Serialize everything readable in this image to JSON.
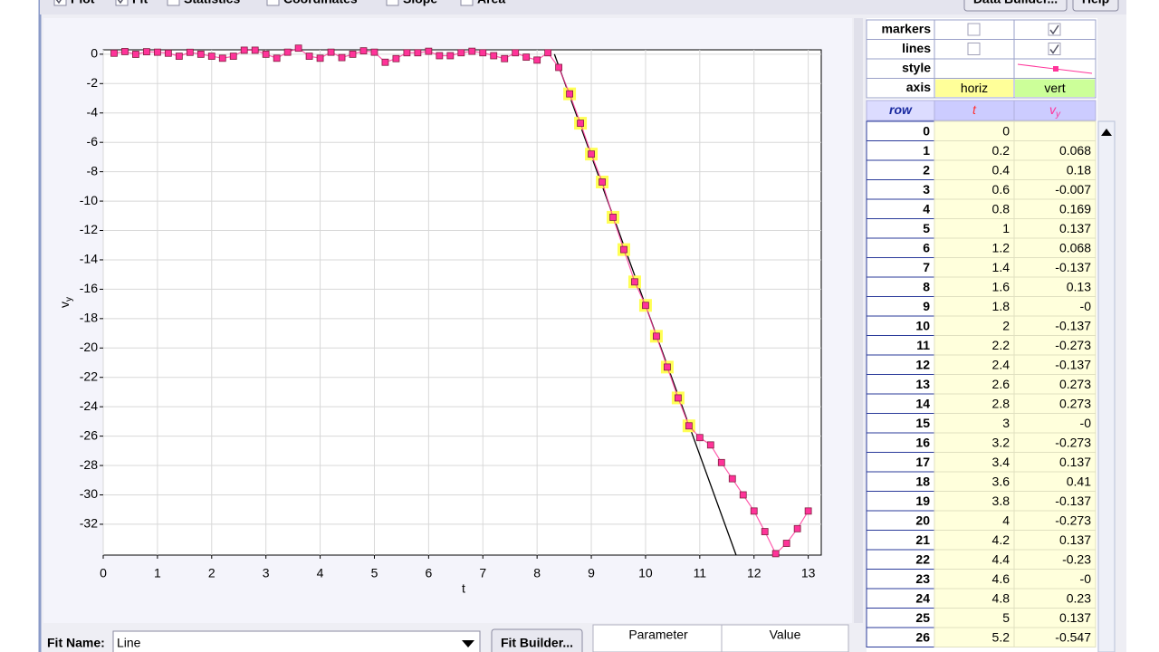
{
  "toolbar": {
    "items": [
      "Plot",
      "Fit",
      "Statistics",
      "Coordinates",
      "Slope",
      "Area"
    ],
    "checked": [
      true,
      true,
      false,
      false,
      false,
      false
    ],
    "buttons": [
      "Data Builder...",
      "Help"
    ]
  },
  "chart_data": {
    "type": "line",
    "xlabel": "t",
    "ylabel": "v",
    "ylabel_sub": "y",
    "x": [
      0,
      0.2,
      0.4,
      0.6,
      0.8,
      1,
      1.2,
      1.4,
      1.6,
      1.8,
      2,
      2.2,
      2.4,
      2.6,
      2.8,
      3,
      3.2,
      3.4,
      3.6,
      3.8,
      4,
      4.2,
      4.4,
      4.6,
      4.8,
      5,
      5.2,
      5.4,
      5.6,
      5.8,
      6,
      6.2,
      6.4,
      6.6,
      6.8,
      7,
      7.2,
      7.4,
      7.6,
      7.8,
      8,
      8.2,
      8.4,
      8.6,
      8.8,
      9,
      9.2,
      9.4,
      9.6,
      9.8,
      10,
      10.2,
      10.4,
      10.6,
      10.8,
      11,
      11.2,
      11.4,
      11.6,
      11.8,
      12,
      12.2,
      12.4,
      12.6,
      12.8,
      13
    ],
    "series": [
      {
        "color": "#ff3399",
        "values": [
          null,
          0.068,
          0.18,
          -0.007,
          0.169,
          0.137,
          0.068,
          -0.137,
          0.13,
          0,
          -0.137,
          -0.273,
          -0.137,
          0.273,
          0.273,
          0,
          -0.273,
          0.137,
          0.41,
          -0.137,
          -0.273,
          0.137,
          -0.23,
          0,
          0.23,
          0.137,
          -0.547,
          -0.3,
          0.1,
          0.1,
          0.2,
          -0.1,
          -0.1,
          0.1,
          0.2,
          0.1,
          -0.1,
          -0.3,
          0.1,
          -0.2,
          -0.4,
          0.1,
          -0.9,
          -2.7,
          -4.7,
          -6.8,
          -8.7,
          -11.1,
          -13.3,
          -15.5,
          -17.1,
          -19.2,
          -21.3,
          -23.4,
          -25.3,
          -26.1,
          -26.6,
          -27.8,
          -28.9,
          -30.0,
          -31.1,
          -32.5,
          -34.0,
          -33.3,
          -32.3,
          -31.1
        ]
      }
    ],
    "highlight": {
      "color": "#ffff55",
      "from": 8.6,
      "to": 10.8
    },
    "fit": {
      "color": "#000000",
      "x": [
        8.32,
        11.67
      ],
      "values": [
        0,
        -34.1
      ]
    },
    "xlim": [
      0,
      13.24
    ],
    "ylim": [
      -34.1,
      0.3
    ],
    "xticks": [
      0,
      1,
      2,
      3,
      4,
      5,
      6,
      7,
      8,
      9,
      10,
      11,
      12,
      13
    ],
    "yticks": [
      0,
      -2,
      -4,
      -6,
      -8,
      -10,
      -12,
      -14,
      -16,
      -18,
      -20,
      -22,
      -24,
      -26,
      -28,
      -30,
      -32
    ],
    "grid": true
  },
  "table": {
    "settings": [
      {
        "label": "markers",
        "checked": [
          false,
          true
        ]
      },
      {
        "label": "lines",
        "checked": [
          false,
          true
        ]
      },
      {
        "label": "style"
      },
      {
        "label": "axis",
        "cells": [
          "horiz",
          "vert"
        ]
      }
    ],
    "header": [
      "row",
      "t",
      "v"
    ],
    "header_sub": "y",
    "rows": [
      [
        "0",
        "0",
        null
      ],
      [
        "1",
        "0.2",
        "0.068"
      ],
      [
        "2",
        "0.4",
        "0.18"
      ],
      [
        "3",
        "0.6",
        "-0.007"
      ],
      [
        "4",
        "0.8",
        "0.169"
      ],
      [
        "5",
        "1",
        "0.137"
      ],
      [
        "6",
        "1.2",
        "0.068"
      ],
      [
        "7",
        "1.4",
        "-0.137"
      ],
      [
        "8",
        "1.6",
        "0.13"
      ],
      [
        "9",
        "1.8",
        "-0"
      ],
      [
        "10",
        "2",
        "-0.137"
      ],
      [
        "11",
        "2.2",
        "-0.273"
      ],
      [
        "12",
        "2.4",
        "-0.137"
      ],
      [
        "13",
        "2.6",
        "0.273"
      ],
      [
        "14",
        "2.8",
        "0.273"
      ],
      [
        "15",
        "3",
        "-0"
      ],
      [
        "16",
        "3.2",
        "-0.273"
      ],
      [
        "17",
        "3.4",
        "0.137"
      ],
      [
        "18",
        "3.6",
        "0.41"
      ],
      [
        "19",
        "3.8",
        "-0.137"
      ],
      [
        "20",
        "4",
        "-0.273"
      ],
      [
        "21",
        "4.2",
        "0.137"
      ],
      [
        "22",
        "4.4",
        "-0.23"
      ],
      [
        "23",
        "4.6",
        "-0"
      ],
      [
        "24",
        "4.8",
        "0.23"
      ],
      [
        "25",
        "5",
        "0.137"
      ],
      [
        "26",
        "5.2",
        "-0.547"
      ]
    ]
  },
  "fit_panel": {
    "name_label": "Fit Name:",
    "name": "Line",
    "button": "Fit Builder...",
    "columns": [
      "Parameter",
      "Value"
    ]
  }
}
